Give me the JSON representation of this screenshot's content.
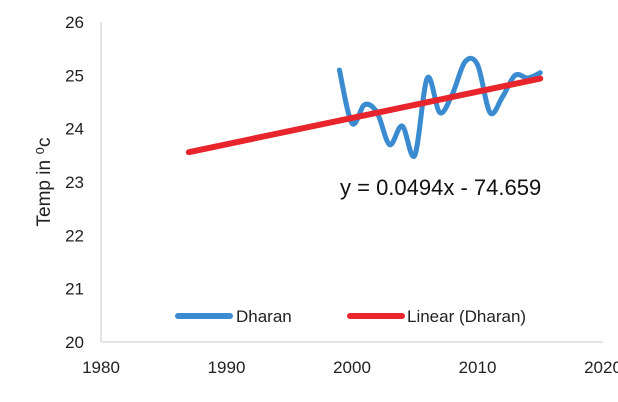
{
  "chart_data": {
    "type": "line",
    "ylabel": "Temp in ⁰c",
    "xlim": [
      1980,
      2020
    ],
    "ylim": [
      20,
      26
    ],
    "x_ticks": [
      "1980",
      "1990",
      "2000",
      "2010",
      "2020"
    ],
    "y_ticks": [
      "20",
      "21",
      "22",
      "23",
      "24",
      "25",
      "26"
    ],
    "grid": false,
    "legend_position": "bottom",
    "series": [
      {
        "name": "Dharan",
        "color": "#3b8bd0",
        "x": [
          1999,
          2000,
          2001,
          2002,
          2003,
          2004,
          2005,
          2006,
          2007,
          2008,
          2009,
          2010,
          2011,
          2012,
          2013,
          2014,
          2015
        ],
        "y": [
          25.1,
          24.1,
          24.45,
          24.3,
          23.7,
          24.05,
          23.5,
          24.95,
          24.3,
          24.65,
          25.25,
          25.2,
          24.3,
          24.6,
          25.0,
          24.95,
          25.05
        ]
      },
      {
        "name": "Linear (Dharan)",
        "color": "#e8242c",
        "x": [
          1987,
          2015
        ],
        "y": [
          23.56,
          24.94
        ]
      }
    ],
    "annotations": [
      "y = 0.0494x - 74.659"
    ]
  }
}
